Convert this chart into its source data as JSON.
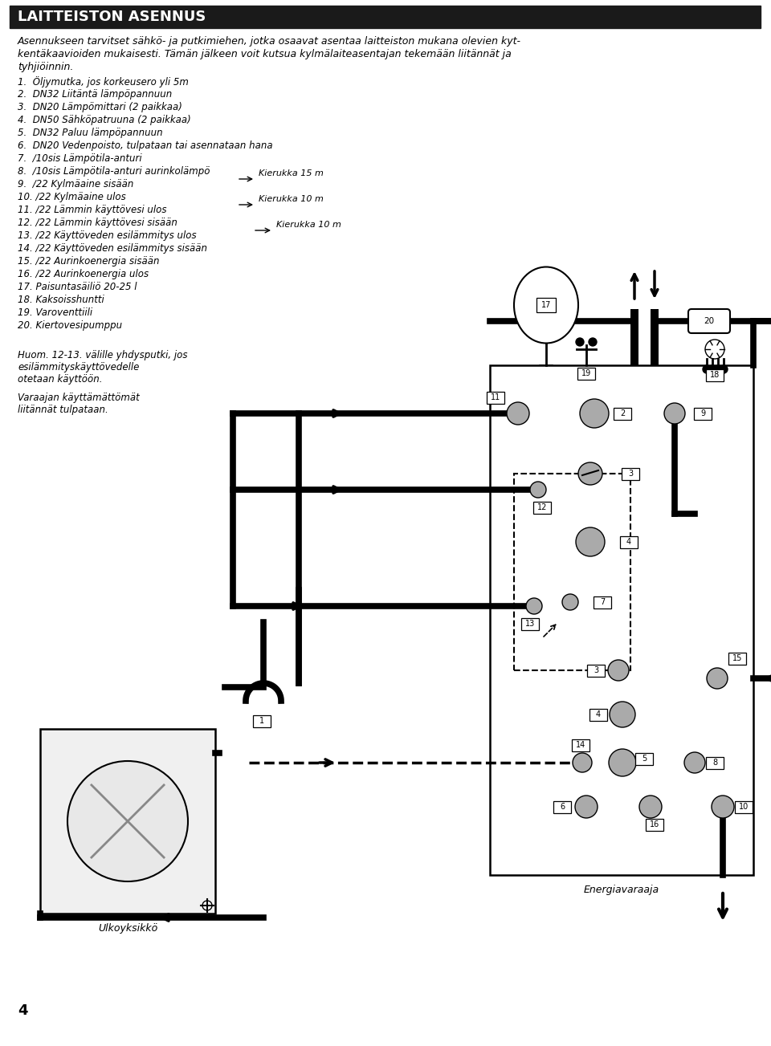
{
  "title": "LAITTEISTON ASENNUS",
  "bg_color": "#ffffff",
  "header_bg": "#1a1a1a",
  "header_text_color": "#ffffff",
  "intro_text": "Asennukseen tarvitset sähkö- ja putkimiehen, jotka osaavat asentaa laitteiston mukana olevien kyt-\nkentäkaavioiden mukaisesti. Tämän jälkeen voit kutsua kylmälaiteasentajan tekemään liitännät ja\ntyhjiöinnin.",
  "items": [
    "1.  Öljymutka, jos korkeusero yli 5m",
    "2.  DN32 Liitäntä lämpöpannuun",
    "3.  DN20 Lämpömittari (2 paikkaa)",
    "4.  DN50 Sähköpatruuna (2 paikkaa)",
    "5.  DN32 Paluu lämpöpannuun",
    "6.  DN20 Vedenpoisto, tulpataan tai asennataan hana",
    "7.  ∕10sis Lämpötila-anturi",
    "8.  ∕10sis Lämpötila-anturi aurinkolämpö",
    "9.  ∕22 Kylmäaine sisään",
    "10. ∕22 Kylmäaine ulos",
    "11. ∕22 Lämmin käyttövesi ulos",
    "12. ∕22 Lämmin käyttövesi sisään",
    "13. ∕22 Käyttöveden esilämmitys ulos",
    "14. ∕22 Käyttöveden esilämmitys sisään",
    "15. ∕22 Aurinkoenergia sisään",
    "16. ∕22 Aurinkoenergia ulos",
    "17. Paisuntasäiliö 20-25 l",
    "18. Kaksoisshuntti",
    "19. Varoventtiili",
    "20. Kiertovesipumppu"
  ],
  "note_text": "Huom. 12-13. välille yhdysputki, jos\nesilämmityskäyttövedelle\notetaan käyttöön.",
  "note2_text": "Varaajan käyttämättömät\nliitännät tulpataan.",
  "kierukka15": "Kierukka 15 m",
  "kierukka10a": "Kierukka 10 m",
  "kierukka10b": "Kierukka 10 m",
  "label_energiavaraaja": "Energiavaraaja",
  "label_ulkoyksikko": "Ulkoyksikkö",
  "page_number": "4",
  "gray_connector": "#aaaaaa",
  "dark_gray": "#777777"
}
